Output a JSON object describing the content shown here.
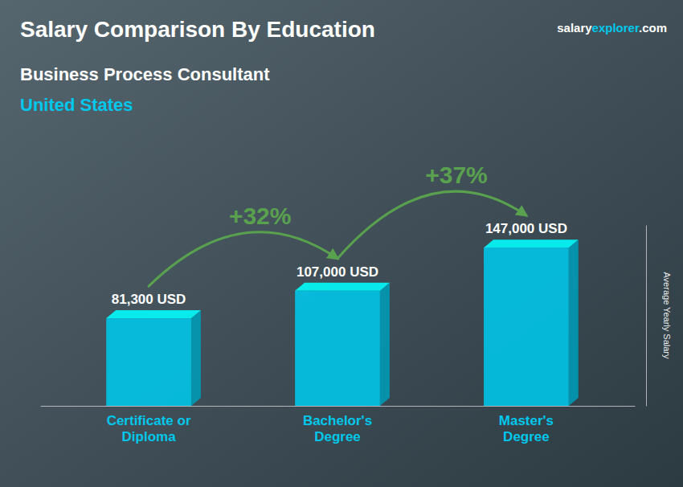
{
  "chart_data": {
    "type": "bar",
    "title": "Salary Comparison By Education",
    "subtitle": "Business Process Consultant",
    "ylabel": "Average Yearly Salary",
    "annotations": [
      "United States",
      "salary",
      "explorer",
      ".com",
      "+32%",
      "+37%"
    ],
    "categories": [
      "Certificate or\nDiploma",
      "Bachelor's\nDegree",
      "Master's\nDegree"
    ],
    "values": [
      81300,
      107000,
      147000
    ],
    "value_labels": [
      "81,300 USD",
      "107,000 USD",
      "147,000 USD"
    ],
    "data_labels": true,
    "color": "#00c8ec",
    "ylim": [
      0,
      168000
    ],
    "grid": false,
    "tick_labels": "x"
  }
}
